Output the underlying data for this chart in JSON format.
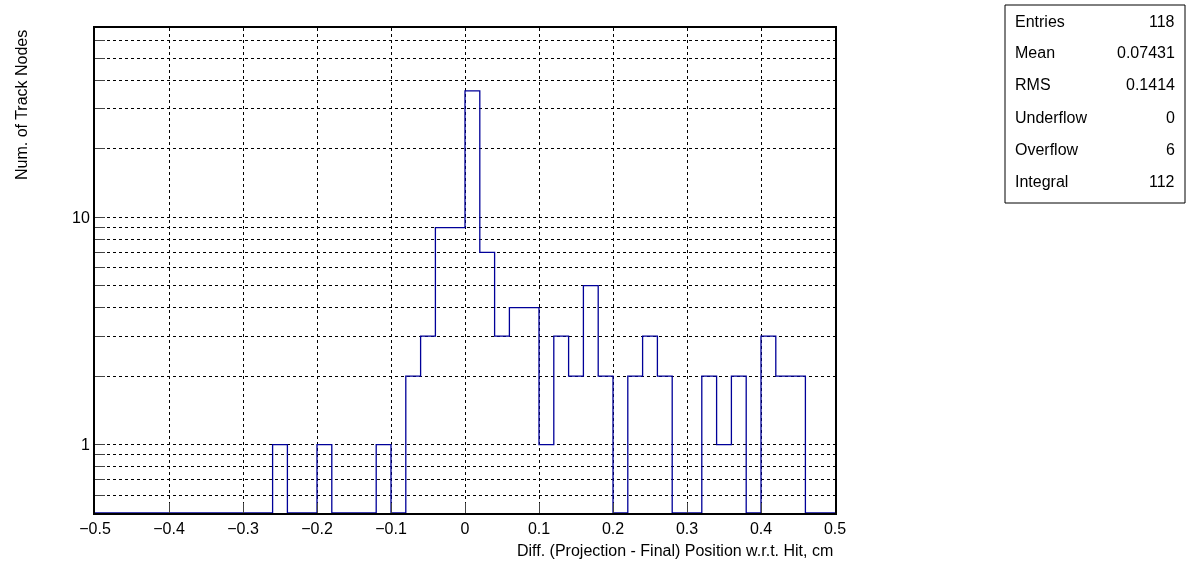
{
  "chart_data": {
    "type": "histogram",
    "xlabel": "Diff. (Projection - Final) Position w.r.t. Hit, cm",
    "ylabel": "Num. of Track Nodes",
    "bins": [
      -0.5,
      -0.48,
      -0.46,
      -0.44,
      -0.42,
      -0.4,
      -0.38,
      -0.36,
      -0.34,
      -0.32,
      -0.3,
      -0.28,
      -0.26,
      -0.24,
      -0.22,
      -0.2,
      -0.18,
      -0.16,
      -0.14,
      -0.12,
      -0.1,
      -0.08,
      -0.06,
      -0.04,
      -0.02,
      0,
      0.02,
      0.04,
      0.06,
      0.08,
      0.1,
      0.12,
      0.14,
      0.16,
      0.18,
      0.2,
      0.22,
      0.24,
      0.26,
      0.28,
      0.3,
      0.32,
      0.34,
      0.36,
      0.38,
      0.4,
      0.42,
      0.44,
      0.46,
      0.48,
      0.5
    ],
    "values": [
      null,
      null,
      null,
      null,
      null,
      null,
      null,
      null,
      null,
      null,
      null,
      null,
      1,
      null,
      null,
      1,
      null,
      null,
      null,
      1,
      null,
      2,
      3,
      9,
      9,
      36,
      7,
      3,
      4,
      4,
      1,
      3,
      2,
      5,
      2,
      null,
      2,
      3,
      2,
      null,
      null,
      2,
      1,
      2,
      null,
      3,
      2,
      2,
      null,
      null
    ],
    "color": "#000099",
    "log": "y",
    "grid": true,
    "line_style": "solid",
    "xlim": [
      -0.5,
      0.5
    ],
    "xticks": [
      {
        "value": -0.5,
        "label": "−0.5"
      },
      {
        "value": -0.4,
        "label": "−0.4"
      },
      {
        "value": -0.3,
        "label": "−0.3"
      },
      {
        "value": -0.2,
        "label": "−0.2"
      },
      {
        "value": -0.1,
        "label": "−0.1"
      },
      0,
      0.1,
      0.2,
      0.3,
      0.4,
      0.5
    ],
    "ylim": [
      0.5,
      68
    ],
    "yticks": [
      {
        "value": 0.5,
        "label": null
      },
      {
        "value": 0.6,
        "label": null
      },
      {
        "value": 0.7,
        "label": null
      },
      {
        "value": 0.8,
        "label": null
      },
      {
        "value": 0.9,
        "label": null
      },
      1,
      {
        "value": 2,
        "label": null
      },
      {
        "value": 3,
        "label": null
      },
      {
        "value": 4,
        "label": null
      },
      {
        "value": 5,
        "label": null
      },
      {
        "value": 6,
        "label": null
      },
      {
        "value": 7,
        "label": null
      },
      {
        "value": 8,
        "label": null
      },
      {
        "value": 9,
        "label": null
      },
      10,
      {
        "value": 20,
        "label": null
      },
      {
        "value": 30,
        "label": null
      },
      {
        "value": 40,
        "label": null
      },
      {
        "value": 50,
        "label": null
      },
      {
        "value": 60,
        "label": null
      }
    ],
    "annotations": [
      "Entries 118",
      "Mean 0.07431",
      "RMS 0.1414",
      "Underflow 0",
      "Overflow 6",
      "Integral 112"
    ]
  }
}
